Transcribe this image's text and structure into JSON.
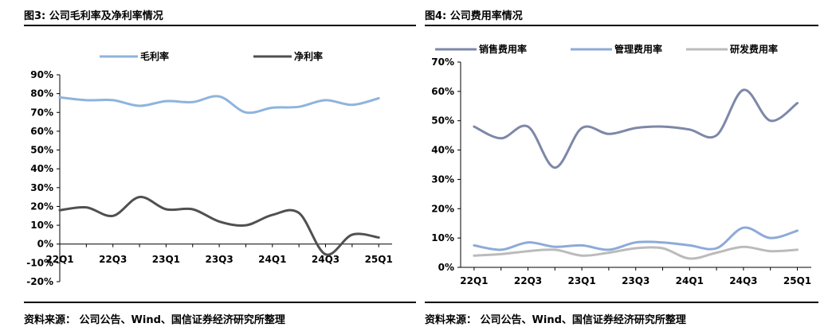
{
  "figures": [
    {
      "title": "图3: 公司毛利率及净利率情况",
      "source": "资料来源：  公司公告、Wind、国信证券经济研究所整理"
    },
    {
      "title": "图4: 公司费用率情况",
      "source": "资料来源：  公司公告、Wind、国信证券经济研究所整理"
    }
  ],
  "chart_data": [
    {
      "type": "line",
      "title": "",
      "xlabel": "",
      "ylabel": "",
      "x": [
        "22Q1",
        "22Q2",
        "22Q3",
        "22Q4",
        "23Q1",
        "23Q2",
        "23Q3",
        "23Q4",
        "24Q1",
        "24Q2",
        "24Q3",
        "24Q4",
        "25Q1"
      ],
      "x_tick_labels": [
        "22Q1",
        "22Q3",
        "23Q1",
        "23Q3",
        "24Q1",
        "24Q3",
        "25Q1"
      ],
      "ylim": [
        -20,
        90
      ],
      "yticks": [
        -20,
        -10,
        0,
        10,
        20,
        30,
        40,
        50,
        60,
        70,
        80,
        90
      ],
      "y_tick_labels": [
        "-20%",
        "-10%",
        "0%",
        "10%",
        "20%",
        "30%",
        "40%",
        "50%",
        "60%",
        "70%",
        "80%",
        "90%"
      ],
      "x_axis_at": 0,
      "grid": false,
      "legend": "top",
      "series": [
        {
          "name": "毛利率",
          "color": "#8eb4dc",
          "values": [
            78,
            76.5,
            76.5,
            73.5,
            76,
            75.5,
            78.5,
            70,
            72.5,
            73,
            76.5,
            74,
            77.5
          ]
        },
        {
          "name": "净利率",
          "color": "#505050",
          "values": [
            18,
            19.5,
            15,
            25,
            18.5,
            18.5,
            12,
            10,
            15.5,
            16.5,
            -5.5,
            5,
            3.5
          ]
        }
      ]
    },
    {
      "type": "line",
      "title": "",
      "xlabel": "",
      "ylabel": "",
      "x": [
        "22Q1",
        "22Q2",
        "22Q3",
        "22Q4",
        "23Q1",
        "23Q2",
        "23Q3",
        "23Q4",
        "24Q1",
        "24Q2",
        "24Q3",
        "24Q4",
        "25Q1"
      ],
      "x_tick_labels": [
        "22Q1",
        "22Q3",
        "23Q1",
        "23Q3",
        "24Q1",
        "24Q3",
        "25Q1"
      ],
      "ylim": [
        0,
        70
      ],
      "yticks": [
        0,
        10,
        20,
        30,
        40,
        50,
        60,
        70
      ],
      "y_tick_labels": [
        "0%",
        "10%",
        "20%",
        "30%",
        "40%",
        "50%",
        "60%",
        "70%"
      ],
      "x_axis_at": 0,
      "grid": false,
      "legend": "top",
      "series": [
        {
          "name": "销售费用率",
          "color": "#7d88a8",
          "values": [
            48,
            44,
            48,
            34,
            47.5,
            45.5,
            47.5,
            48,
            47,
            45,
            60.5,
            50,
            56
          ]
        },
        {
          "name": "管理费用率",
          "color": "#8daad8",
          "values": [
            7.5,
            6,
            8.5,
            7,
            7.5,
            6,
            8.5,
            8.5,
            7.5,
            6.5,
            13.5,
            10,
            12.5
          ]
        },
        {
          "name": "研发费用率",
          "color": "#bbbbbb",
          "values": [
            4,
            4.5,
            5.5,
            6,
            4,
            5,
            6.5,
            6.5,
            3,
            5,
            7,
            5.5,
            6
          ]
        }
      ]
    }
  ]
}
